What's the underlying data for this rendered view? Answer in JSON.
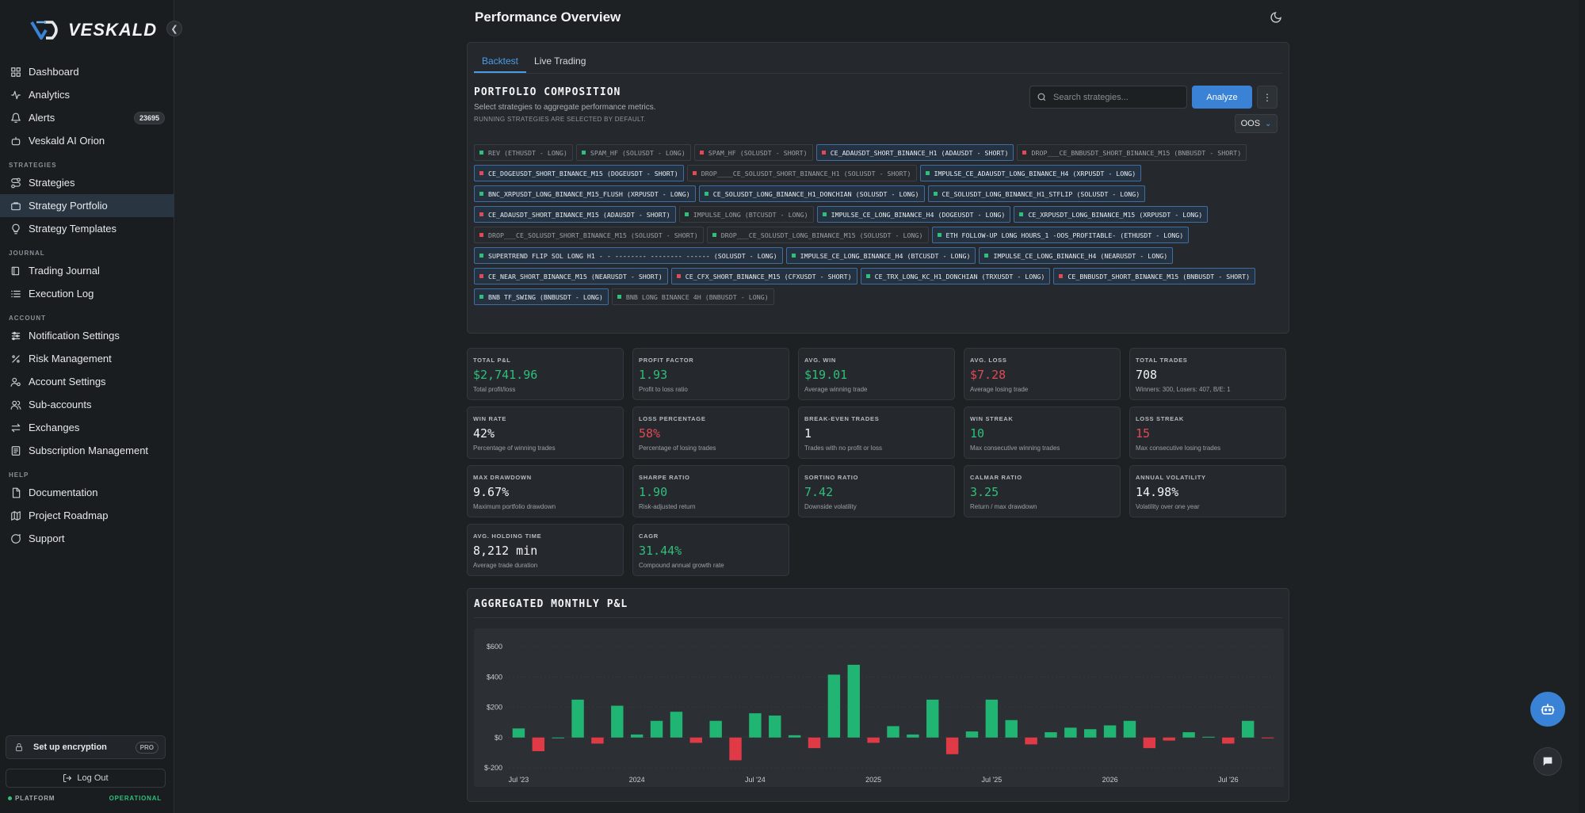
{
  "brand": {
    "name": "VESKALD"
  },
  "page": {
    "title": "Performance Overview"
  },
  "sidebar": {
    "sections": [
      {
        "label": "",
        "items": [
          {
            "label": "Dashboard",
            "icon": "dashboard-icon"
          },
          {
            "label": "Analytics",
            "icon": "activity-icon"
          },
          {
            "label": "Alerts",
            "icon": "bell-icon",
            "badge": "23695"
          },
          {
            "label": "Veskald AI Orion",
            "icon": "bot-icon"
          }
        ]
      },
      {
        "label": "STRATEGIES",
        "items": [
          {
            "label": "Strategies",
            "icon": "route-icon"
          },
          {
            "label": "Strategy Portfolio",
            "icon": "briefcase-icon",
            "active": true
          },
          {
            "label": "Strategy Templates",
            "icon": "lightbulb-icon"
          }
        ]
      },
      {
        "label": "JOURNAL",
        "items": [
          {
            "label": "Trading Journal",
            "icon": "book-icon"
          },
          {
            "label": "Execution Log",
            "icon": "list-icon"
          }
        ]
      },
      {
        "label": "ACCOUNT",
        "items": [
          {
            "label": "Notification Settings",
            "icon": "sliders-icon"
          },
          {
            "label": "Risk Management",
            "icon": "percent-icon"
          },
          {
            "label": "Account Settings",
            "icon": "user-cog-icon"
          },
          {
            "label": "Sub-accounts",
            "icon": "users-icon"
          },
          {
            "label": "Exchanges",
            "icon": "exchange-icon"
          },
          {
            "label": "Subscription Management",
            "icon": "receipt-icon"
          }
        ]
      },
      {
        "label": "HELP",
        "items": [
          {
            "label": "Documentation",
            "icon": "file-icon"
          },
          {
            "label": "Project Roadmap",
            "icon": "map-icon"
          },
          {
            "label": "Support",
            "icon": "message-icon"
          }
        ]
      }
    ],
    "encryption": {
      "label": "Set up encryption",
      "tag": "PRO"
    },
    "logout": "Log Out",
    "platform": {
      "label": "PLATFORM",
      "status": "OPERATIONAL"
    }
  },
  "tabs": [
    {
      "label": "Backtest",
      "active": true
    },
    {
      "label": "Live Trading",
      "active": false
    }
  ],
  "composition": {
    "title": "PORTFOLIO COMPOSITION",
    "subtitle": "Select strategies to aggregate performance metrics.",
    "note": "RUNNING STRATEGIES ARE SELECTED BY DEFAULT.",
    "search_placeholder": "Search strategies...",
    "analyze_label": "Analyze",
    "mode": "OOS",
    "chips": [
      {
        "label": "REV (ETHUSDT - LONG)",
        "dir": "long",
        "selected": false
      },
      {
        "label": "SPAM_HF (SOLUSDT - LONG)",
        "dir": "long",
        "selected": false
      },
      {
        "label": "SPAM_HF (SOLUSDT - SHORT)",
        "dir": "short",
        "selected": false
      },
      {
        "label": "CE_ADAUSDT_SHORT_BINANCE_H1 (ADAUSDT - SHORT)",
        "dir": "short",
        "selected": true
      },
      {
        "label": "DROP___CE_BNBUSDT_SHORT_BINANCE_M15 (BNBUSDT - SHORT)",
        "dir": "short",
        "selected": false
      },
      {
        "label": "CE_DOGEUSDT_SHORT_BINANCE_M15 (DOGEUSDT - SHORT)",
        "dir": "short",
        "selected": true
      },
      {
        "label": "DROP____CE_SOLUSDT_SHORT_BINANCE_H1 (SOLUSDT - SHORT)",
        "dir": "short",
        "selected": false
      },
      {
        "label": "IMPULSE_CE_ADAUSDT_LONG_BINANCE_H4 (XRPUSDT - LONG)",
        "dir": "long",
        "selected": true
      },
      {
        "label": "BNC_XRPUSDT_LONG_BINANCE_M15_FLUSH (XRPUSDT - LONG)",
        "dir": "long",
        "selected": true
      },
      {
        "label": "CE_SOLUSDT_LONG_BINANCE_H1_DONCHIAN (SOLUSDT - LONG)",
        "dir": "long",
        "selected": true
      },
      {
        "label": "CE_SOLUSDT_LONG_BINANCE_H1_STFLIP (SOLUSDT - LONG)",
        "dir": "long",
        "selected": true
      },
      {
        "label": "CE_ADAUSDT_SHORT_BINANCE_M15 (ADAUSDT - SHORT)",
        "dir": "short",
        "selected": true
      },
      {
        "label": "IMPULSE_LONG (BTCUSDT - LONG)",
        "dir": "long",
        "selected": false
      },
      {
        "label": "IMPULSE_CE_LONG_BINANCE_H4 (DOGEUSDT - LONG)",
        "dir": "long",
        "selected": true
      },
      {
        "label": "CE_XRPUSDT_LONG_BINANCE_M15 (XRPUSDT - LONG)",
        "dir": "long",
        "selected": true
      },
      {
        "label": "DROP___CE_SOLUSDT_SHORT_BINANCE_M15 (SOLUSDT - SHORT)",
        "dir": "short",
        "selected": false
      },
      {
        "label": "DROP___CE_SOLUSDT_LONG_BINANCE_M15 (SOLUSDT - LONG)",
        "dir": "long",
        "selected": false
      },
      {
        "label": "ETH FOLLOW-UP LONG HOURS_1 -OOS_PROFITABLE- (ETHUSDT - LONG)",
        "dir": "long",
        "selected": true
      },
      {
        "label": "SUPERTREND FLIP SOL LONG H1 - - -------- -------- ------ (SOLUSDT - LONG)",
        "dir": "long",
        "selected": true
      },
      {
        "label": "IMPULSE_CE_LONG_BINANCE_H4 (BTCUSDT - LONG)",
        "dir": "long",
        "selected": true
      },
      {
        "label": "IMPULSE_CE_LONG_BINANCE_H4 (NEARUSDT - LONG)",
        "dir": "long",
        "selected": true
      },
      {
        "label": "CE_NEAR_SHORT_BINANCE_M15 (NEARUSDT - SHORT)",
        "dir": "short",
        "selected": true
      },
      {
        "label": "CE_CFX_SHORT_BINANCE_M15 (CFXUSDT - SHORT)",
        "dir": "short",
        "selected": true
      },
      {
        "label": "CE_TRX_LONG_KC_H1_DONCHIAN (TRXUSDT - LONG)",
        "dir": "long",
        "selected": true
      },
      {
        "label": "CE_BNBUSDT_SHORT_BINANCE_M15 (BNBUSDT - SHORT)",
        "dir": "short",
        "selected": true
      },
      {
        "label": "BNB TF_SWING (BNBUSDT - LONG)",
        "dir": "long",
        "selected": true
      },
      {
        "label": "BNB LONG BINANCE 4H (BNBUSDT - LONG)",
        "dir": "long",
        "selected": false
      }
    ]
  },
  "metrics": [
    {
      "label": "TOTAL P&L",
      "value": "$2,741.96",
      "desc": "Total profit/loss",
      "tone": "green"
    },
    {
      "label": "PROFIT FACTOR",
      "value": "1.93",
      "desc": "Profit to loss ratio",
      "tone": "green"
    },
    {
      "label": "AVG. WIN",
      "value": "$19.01",
      "desc": "Average winning trade",
      "tone": "green"
    },
    {
      "label": "AVG. LOSS",
      "value": "$7.28",
      "desc": "Average losing trade",
      "tone": "red"
    },
    {
      "label": "TOTAL TRADES",
      "value": "708",
      "desc": "Winners: 300, Losers: 407, B/E: 1",
      "tone": ""
    },
    {
      "label": "WIN RATE",
      "value": "42%",
      "desc": "Percentage of winning trades",
      "tone": ""
    },
    {
      "label": "LOSS PERCENTAGE",
      "value": "58%",
      "desc": "Percentage of losing trades",
      "tone": "red"
    },
    {
      "label": "BREAK-EVEN TRADES",
      "value": "1",
      "desc": "Trades with no profit or loss",
      "tone": ""
    },
    {
      "label": "WIN STREAK",
      "value": "10",
      "desc": "Max consecutive winning trades",
      "tone": "green"
    },
    {
      "label": "LOSS STREAK",
      "value": "15",
      "desc": "Max consecutive losing trades",
      "tone": "red"
    },
    {
      "label": "MAX DRAWDOWN",
      "value": "9.67%",
      "desc": "Maximum portfolio drawdown",
      "tone": ""
    },
    {
      "label": "SHARPE RATIO",
      "value": "1.90",
      "desc": "Risk-adjusted return",
      "tone": "green"
    },
    {
      "label": "SORTINO RATIO",
      "value": "7.42",
      "desc": "Downside volatility",
      "tone": "green"
    },
    {
      "label": "CALMAR RATIO",
      "value": "3.25",
      "desc": "Return / max drawdown",
      "tone": "green"
    },
    {
      "label": "ANNUAL VOLATILITY",
      "value": "14.98%",
      "desc": "Volatility over one year",
      "tone": ""
    },
    {
      "label": "AVG. HOLDING TIME",
      "value": "8,212 min",
      "desc": "Average trade duration",
      "tone": ""
    },
    {
      "label": "CAGR",
      "value": "31.44%",
      "desc": "Compound annual growth rate",
      "tone": "green"
    }
  ],
  "chart_data": {
    "type": "bar",
    "title": "AGGREGATED MONTHLY P&L",
    "xlabel": "",
    "ylabel": "",
    "ylim": [
      -200,
      600
    ],
    "yticks": [
      600,
      400,
      200,
      0,
      -200
    ],
    "ytick_labels": [
      "$600",
      "$400",
      "$200",
      "$0",
      "$-200"
    ],
    "xtick_labels": [
      {
        "label": "Jul '23",
        "index": 0
      },
      {
        "label": "2024",
        "index": 6
      },
      {
        "label": "Jul '24",
        "index": 12
      },
      {
        "label": "2025",
        "index": 18
      },
      {
        "label": "Jul '25",
        "index": 24
      },
      {
        "label": "2026",
        "index": 30
      },
      {
        "label": "Jul '26",
        "index": 36
      }
    ],
    "values": [
      60,
      -90,
      0,
      250,
      -40,
      210,
      20,
      110,
      170,
      -35,
      110,
      -150,
      160,
      145,
      15,
      -70,
      415,
      480,
      -35,
      75,
      20,
      250,
      -110,
      40,
      250,
      115,
      -45,
      35,
      65,
      55,
      80,
      110,
      -70,
      -20,
      35,
      5,
      -40,
      110,
      -5
    ],
    "colors": {
      "positive": "#21b573",
      "negative": "#e03a47"
    },
    "grid": true
  },
  "colors": {
    "accent": "#3a82d6",
    "green": "#2fbf7a",
    "red": "#e04a55",
    "background": "#1e2124"
  }
}
